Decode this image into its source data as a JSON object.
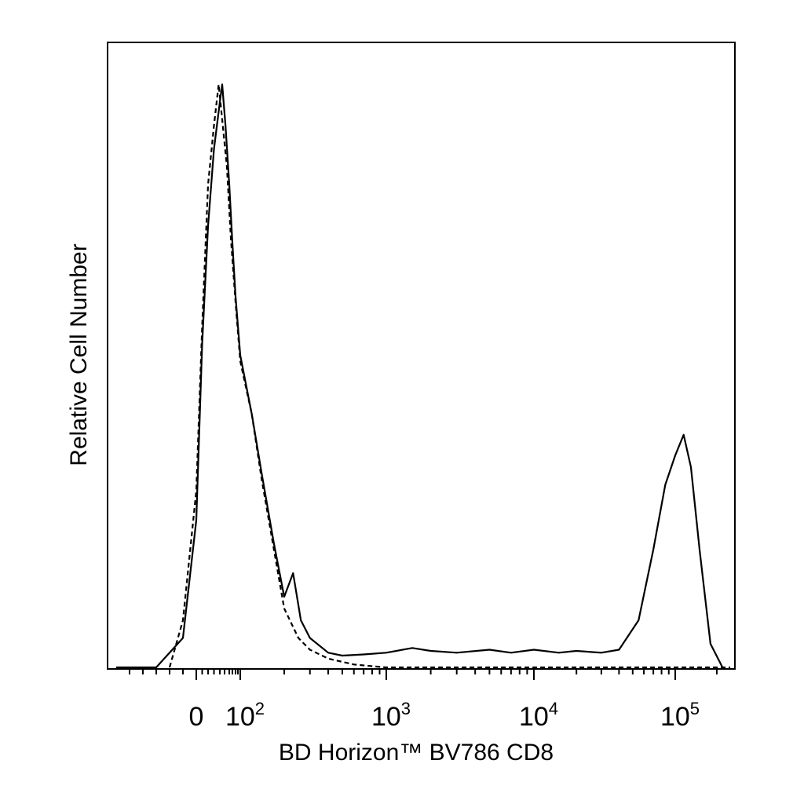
{
  "chart_data": {
    "type": "line",
    "title": "",
    "xlabel": "BD Horizon™ BV786 CD8",
    "ylabel": "Relative Cell Number",
    "x_scale": "biexponential (log above ~10^2)",
    "xlim": [
      -60,
      250000
    ],
    "ylim": [
      0,
      1
    ],
    "grid": false,
    "legend": "none",
    "x_tick_labels": [
      {
        "value": 0,
        "label": "0"
      },
      {
        "value": 100,
        "base": "10",
        "exp": "2"
      },
      {
        "value": 1000,
        "base": "10",
        "exp": "3"
      },
      {
        "value": 10000,
        "base": "10",
        "exp": "4"
      },
      {
        "value": 100000,
        "base": "10",
        "exp": "5"
      }
    ],
    "series": [
      {
        "style": "solid",
        "color": "#000000",
        "points": [
          [
            -60,
            0.0
          ],
          [
            -30,
            0.0
          ],
          [
            -10,
            0.05
          ],
          [
            0,
            0.25
          ],
          [
            10,
            0.55
          ],
          [
            20,
            0.75
          ],
          [
            30,
            0.88
          ],
          [
            40,
            0.96
          ],
          [
            45,
            0.99
          ],
          [
            52,
            0.92
          ],
          [
            60,
            0.82
          ],
          [
            70,
            0.72
          ],
          [
            80,
            0.63
          ],
          [
            100,
            0.53
          ],
          [
            120,
            0.43
          ],
          [
            140,
            0.33
          ],
          [
            170,
            0.21
          ],
          [
            200,
            0.12
          ],
          [
            230,
            0.16
          ],
          [
            260,
            0.08
          ],
          [
            300,
            0.05
          ],
          [
            400,
            0.025
          ],
          [
            500,
            0.02
          ],
          [
            700,
            0.022
          ],
          [
            1000,
            0.025
          ],
          [
            1500,
            0.033
          ],
          [
            2000,
            0.028
          ],
          [
            3000,
            0.025
          ],
          [
            5000,
            0.03
          ],
          [
            7000,
            0.025
          ],
          [
            10000,
            0.03
          ],
          [
            15000,
            0.025
          ],
          [
            20000,
            0.028
          ],
          [
            30000,
            0.025
          ],
          [
            40000,
            0.03
          ],
          [
            55000,
            0.08
          ],
          [
            70000,
            0.2
          ],
          [
            85000,
            0.31
          ],
          [
            100000,
            0.36
          ],
          [
            115000,
            0.395
          ],
          [
            130000,
            0.34
          ],
          [
            150000,
            0.2
          ],
          [
            180000,
            0.04
          ],
          [
            220000,
            0.0
          ]
        ]
      },
      {
        "style": "dashed",
        "color": "#000000",
        "points": [
          [
            -20,
            0.0
          ],
          [
            -10,
            0.08
          ],
          [
            0,
            0.3
          ],
          [
            10,
            0.58
          ],
          [
            20,
            0.82
          ],
          [
            30,
            0.92
          ],
          [
            38,
            0.99
          ],
          [
            45,
            0.93
          ],
          [
            55,
            0.85
          ],
          [
            65,
            0.73
          ],
          [
            80,
            0.62
          ],
          [
            100,
            0.52
          ],
          [
            120,
            0.43
          ],
          [
            140,
            0.32
          ],
          [
            170,
            0.2
          ],
          [
            200,
            0.1
          ],
          [
            250,
            0.05
          ],
          [
            300,
            0.03
          ],
          [
            400,
            0.015
          ],
          [
            600,
            0.005
          ],
          [
            800,
            0.002
          ],
          [
            1000,
            0.0
          ],
          [
            250000,
            0.0
          ]
        ]
      }
    ]
  }
}
